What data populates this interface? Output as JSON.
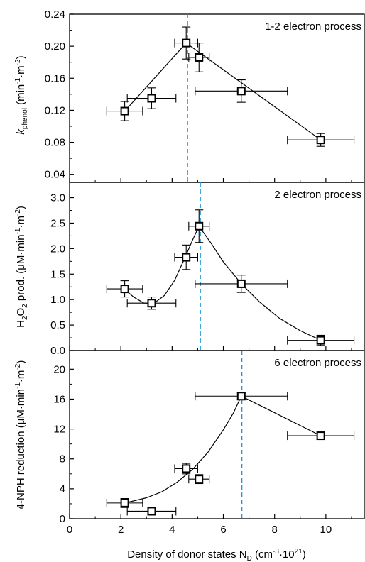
{
  "chart_data": [
    {
      "type": "scatter",
      "panel": "top",
      "annotation": "1-2 electron process",
      "ylabel": "k_phenol (min-1·m-2)",
      "ylabel_parts": {
        "sym": "k",
        "sub": "phenol",
        "unit_open": " (min",
        "sup1": "-1",
        "mid": "·m",
        "sup2": "-2",
        "unit_close": ")"
      },
      "ylim": [
        0.03,
        0.24
      ],
      "yticks": [
        0.04,
        0.08,
        0.12,
        0.16,
        0.2,
        0.24
      ],
      "ytick_labels": [
        "0.04",
        "0.08",
        "0.12",
        "0.16",
        "0.20",
        "0.24"
      ],
      "xlim": [
        0,
        11.5
      ],
      "points": [
        {
          "x": 2.15,
          "y": 0.119,
          "xerr": 0.7,
          "yerr": 0.012
        },
        {
          "x": 3.2,
          "y": 0.135,
          "xerr": 0.95,
          "yerr": 0.013
        },
        {
          "x": 4.55,
          "y": 0.204,
          "xerr": 0.45,
          "yerr": 0.02
        },
        {
          "x": 5.05,
          "y": 0.186,
          "xerr": 0.4,
          "yerr": 0.018
        },
        {
          "x": 6.7,
          "y": 0.144,
          "xerr": 1.8,
          "yerr": 0.014
        },
        {
          "x": 9.8,
          "y": 0.083,
          "xerr": 1.3,
          "yerr": 0.008
        }
      ],
      "fit": [
        [
          2.15,
          0.119
        ],
        [
          4.55,
          0.204
        ],
        [
          9.8,
          0.083
        ]
      ],
      "vline_x": 4.6,
      "grid": false
    },
    {
      "type": "scatter",
      "panel": "middle",
      "annotation": "2 electron process",
      "ylabel": "H2O2 prod. (μM·min-1·m-2)",
      "ylabel_parts": {
        "a": "H",
        "sub1": "2",
        "b": "O",
        "sub2": "2",
        "c": " prod. (μM·min",
        "sup1": "-1",
        "d": "·m",
        "sup2": "-2",
        "e": ")"
      },
      "ylim": [
        0.0,
        3.3
      ],
      "yticks": [
        0.0,
        0.5,
        1.0,
        1.5,
        2.0,
        2.5,
        3.0
      ],
      "ytick_labels": [
        "0.0",
        "0.5",
        "1.0",
        "1.5",
        "2.0",
        "2.5",
        "3.0"
      ],
      "xlim": [
        0,
        11.5
      ],
      "points": [
        {
          "x": 2.15,
          "y": 1.21,
          "xerr": 0.7,
          "yerr": 0.16
        },
        {
          "x": 3.2,
          "y": 0.93,
          "xerr": 0.95,
          "yerr": 0.12
        },
        {
          "x": 4.55,
          "y": 1.83,
          "xerr": 0.45,
          "yerr": 0.24
        },
        {
          "x": 5.05,
          "y": 2.44,
          "xerr": 0.4,
          "yerr": 0.32
        },
        {
          "x": 6.7,
          "y": 1.31,
          "xerr": 1.8,
          "yerr": 0.17
        },
        {
          "x": 9.8,
          "y": 0.2,
          "xerr": 1.3,
          "yerr": 0.1
        }
      ],
      "fit": [
        [
          2.1,
          1.22
        ],
        [
          2.5,
          1.05
        ],
        [
          2.9,
          0.93
        ],
        [
          3.3,
          0.93
        ],
        [
          3.7,
          1.08
        ],
        [
          4.1,
          1.38
        ],
        [
          4.5,
          1.82
        ],
        [
          4.8,
          2.17
        ],
        [
          5.05,
          2.44
        ],
        [
          5.5,
          2.12
        ],
        [
          6.0,
          1.74
        ],
        [
          6.7,
          1.31
        ],
        [
          7.4,
          0.96
        ],
        [
          8.2,
          0.63
        ],
        [
          9.0,
          0.39
        ],
        [
          9.8,
          0.2
        ]
      ],
      "vline_x": 5.1,
      "grid": false
    },
    {
      "type": "scatter",
      "panel": "bottom",
      "annotation": "6 electron process",
      "ylabel": "4-NPH reduction (μM·min-1·m-2)",
      "ylabel_parts": {
        "a": "4-NPH reduction (μM·min",
        "sup1": "-1",
        "b": "·m",
        "sup2": "-2",
        "c": ")"
      },
      "ylim": [
        0,
        22.5
      ],
      "yticks": [
        0,
        4,
        8,
        12,
        16,
        20
      ],
      "ytick_labels": [
        "0",
        "4",
        "8",
        "12",
        "16",
        "20"
      ],
      "xlim": [
        0,
        11.5
      ],
      "xticks": [
        0,
        2,
        4,
        6,
        8,
        10
      ],
      "xtick_labels": [
        "0",
        "2",
        "4",
        "6",
        "8",
        "10"
      ],
      "xlabel": "Density of donor states N_D (cm-3·10^21)",
      "xlabel_parts": {
        "a": "Density of donor states N",
        "sub": "D",
        "b": " (cm",
        "sup1": "-3",
        "c": "·10",
        "sup2": "21",
        "d": ")"
      },
      "points": [
        {
          "x": 2.15,
          "y": 2.1,
          "xerr": 0.7,
          "yerr": 0.6
        },
        {
          "x": 3.2,
          "y": 1.0,
          "xerr": 0.95,
          "yerr": 0.5
        },
        {
          "x": 4.55,
          "y": 6.7,
          "xerr": 0.45,
          "yerr": 0.7
        },
        {
          "x": 5.05,
          "y": 5.3,
          "xerr": 0.4,
          "yerr": 0.6
        },
        {
          "x": 6.7,
          "y": 16.4,
          "xerr": 1.8,
          "yerr": 0.4
        },
        {
          "x": 9.8,
          "y": 11.1,
          "xerr": 1.3,
          "yerr": 0.5
        }
      ],
      "fit": [
        [
          2.15,
          2.1
        ],
        [
          3.0,
          2.8
        ],
        [
          3.6,
          3.6
        ],
        [
          4.2,
          4.9
        ],
        [
          4.8,
          6.6
        ],
        [
          5.4,
          8.9
        ],
        [
          6.0,
          11.9
        ],
        [
          6.4,
          14.2
        ],
        [
          6.7,
          16.4
        ],
        [
          9.8,
          11.1
        ]
      ],
      "vline_x": 6.72,
      "grid": false
    }
  ],
  "colors": {
    "axis": "#000000",
    "marker_edge": "#000000",
    "marker_fill": "#ffffff",
    "fit_line": "#000000",
    "vline": "#1a9ad6"
  }
}
